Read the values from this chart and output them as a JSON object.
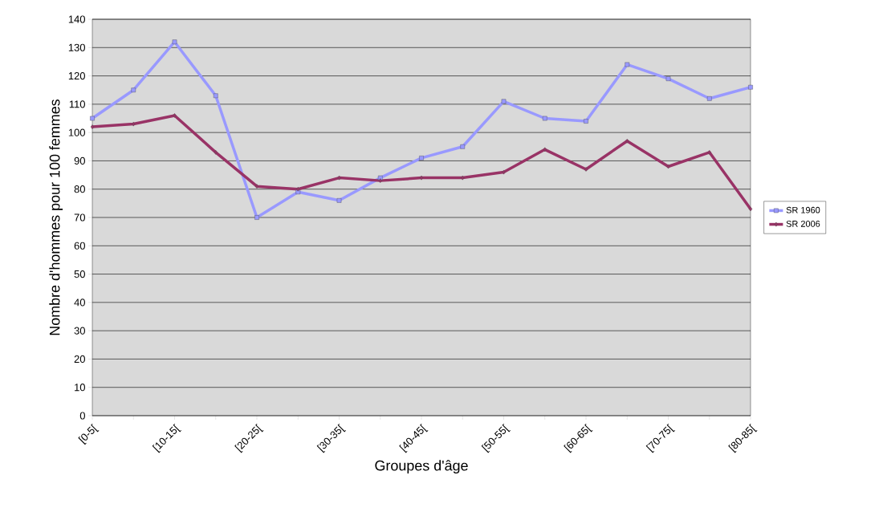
{
  "chart_data": {
    "type": "line",
    "xlabel": "Groupes d'âge",
    "ylabel": "Nombre d'hommes pour 100 femmes",
    "categories": [
      "[0-5[",
      null,
      "[10-15[",
      null,
      "[20-25[",
      null,
      "[30-35[",
      null,
      "[40-45[",
      null,
      "[50-55[",
      null,
      "[60-65[",
      null,
      "[70-75[",
      null,
      "[80-85["
    ],
    "series": [
      {
        "name": "SR 1960",
        "color": "#9999ff",
        "marker": "square",
        "values": [
          105,
          115,
          132,
          113,
          70,
          79,
          76,
          84,
          91,
          95,
          111,
          105,
          104,
          124,
          119,
          112,
          116
        ]
      },
      {
        "name": "SR 2006",
        "color": "#993366",
        "marker": "diamond",
        "values": [
          102,
          103,
          106,
          93,
          81,
          80,
          84,
          83,
          84,
          84,
          86,
          94,
          87,
          97,
          88,
          93,
          73
        ]
      }
    ],
    "ylim": [
      0,
      140
    ],
    "yticks": [
      0,
      10,
      20,
      30,
      40,
      50,
      60,
      70,
      80,
      90,
      100,
      110,
      120,
      130,
      140
    ],
    "grid": "y",
    "legend": "right"
  }
}
